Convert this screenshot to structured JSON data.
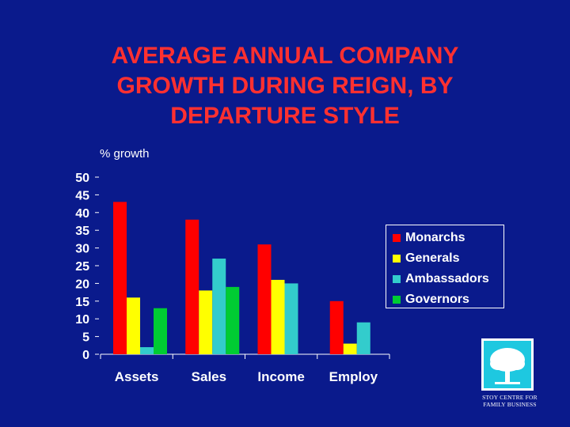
{
  "slide": {
    "title": "AVERAGE ANNUAL COMPANY\nGROWTH DURING REIGN, BY\nDEPARTURE STYLE"
  },
  "colors": {
    "background": "#0a1a8c",
    "title": "#ff3030",
    "text": "#ffffff",
    "Monarchs": "#ff0000",
    "Generals": "#ffff00",
    "Ambassadors": "#33cccc",
    "Governors": "#00cc33"
  },
  "chart_data": {
    "type": "bar",
    "ylabel": "% growth",
    "categories": [
      "Assets",
      "Sales",
      "Income",
      "Employ"
    ],
    "series": [
      {
        "name": "Monarchs",
        "values": [
          43,
          38,
          31,
          15
        ]
      },
      {
        "name": "Generals",
        "values": [
          16,
          18,
          21,
          3
        ]
      },
      {
        "name": "Ambassadors",
        "values": [
          2,
          27,
          20,
          9
        ]
      },
      {
        "name": "Governors",
        "values": [
          13,
          19,
          null,
          null
        ]
      }
    ],
    "yticks": [
      "0",
      "5",
      "10",
      "15",
      "20",
      "25",
      "30",
      "35",
      "40",
      "45",
      "50"
    ],
    "ylim": [
      0,
      50
    ],
    "grid": false,
    "legend_position": "right"
  },
  "logo": {
    "text": "STOY CENTRE FOR\nFAMILY BUSINESS",
    "icon": "tree-icon"
  }
}
